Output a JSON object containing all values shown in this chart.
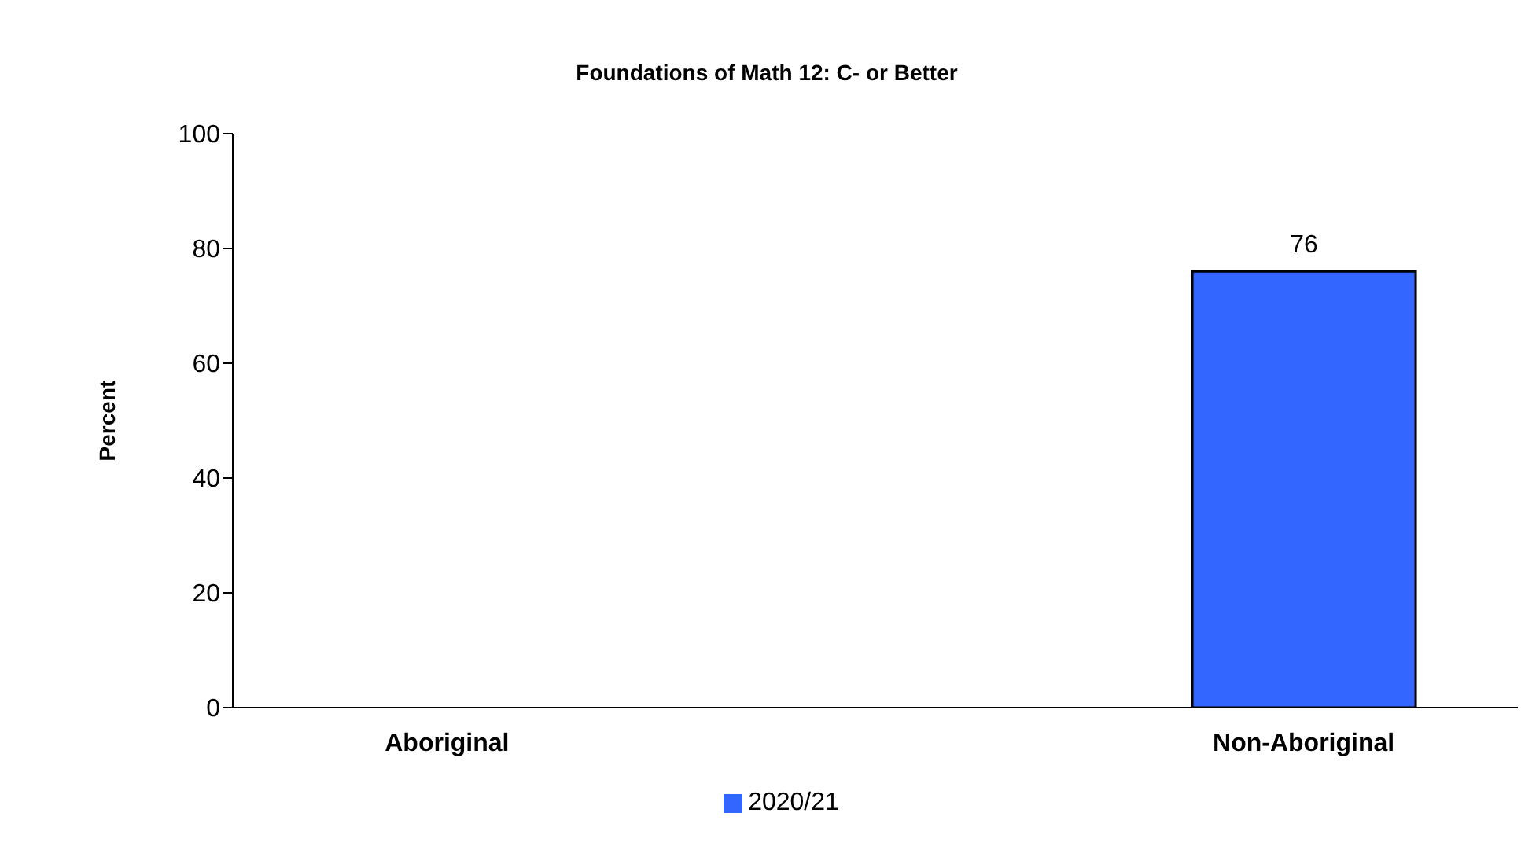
{
  "chart_data": {
    "type": "bar",
    "title": "Foundations of Math 12: C- or Better",
    "ylabel": "Percent",
    "categories": [
      "Aboriginal",
      null,
      "Non-Aboriginal"
    ],
    "series": [
      {
        "name": "2020/21",
        "color": "#3366ff",
        "values": [
          null,
          null,
          76
        ]
      }
    ],
    "ylim": [
      0,
      100
    ],
    "yticks": [
      0,
      20,
      40,
      60,
      80,
      100
    ],
    "data_labels": true,
    "legend": "bottom",
    "grid": false
  }
}
